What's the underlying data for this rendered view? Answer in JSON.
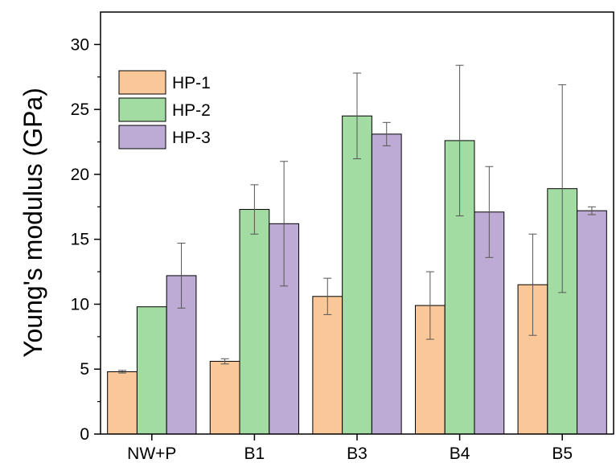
{
  "chart_data": {
    "type": "bar",
    "title": "",
    "xlabel": "",
    "ylabel": "Young's modulus (GPa)",
    "ylim": [
      0,
      32.5
    ],
    "yticks": [
      0,
      5,
      10,
      15,
      20,
      25,
      30
    ],
    "categories": [
      "NW+P",
      "B1",
      "B3",
      "B4",
      "B5"
    ],
    "legend_position": "top-left",
    "grid": false,
    "series": [
      {
        "name": "HP-1",
        "color": "#FAC898",
        "values": [
          4.8,
          5.6,
          10.6,
          9.9,
          11.5
        ],
        "errors": [
          0.1,
          0.2,
          1.4,
          2.6,
          3.9
        ]
      },
      {
        "name": "HP-2",
        "color": "#A3DCA3",
        "values": [
          9.8,
          17.3,
          24.5,
          22.6,
          18.9
        ],
        "errors": [
          0,
          1.9,
          3.3,
          5.8,
          8.0
        ]
      },
      {
        "name": "HP-3",
        "color": "#BEABD5",
        "values": [
          12.2,
          16.2,
          23.1,
          17.1,
          17.2
        ],
        "errors": [
          2.5,
          4.8,
          0.9,
          3.5,
          0.3
        ]
      }
    ]
  }
}
